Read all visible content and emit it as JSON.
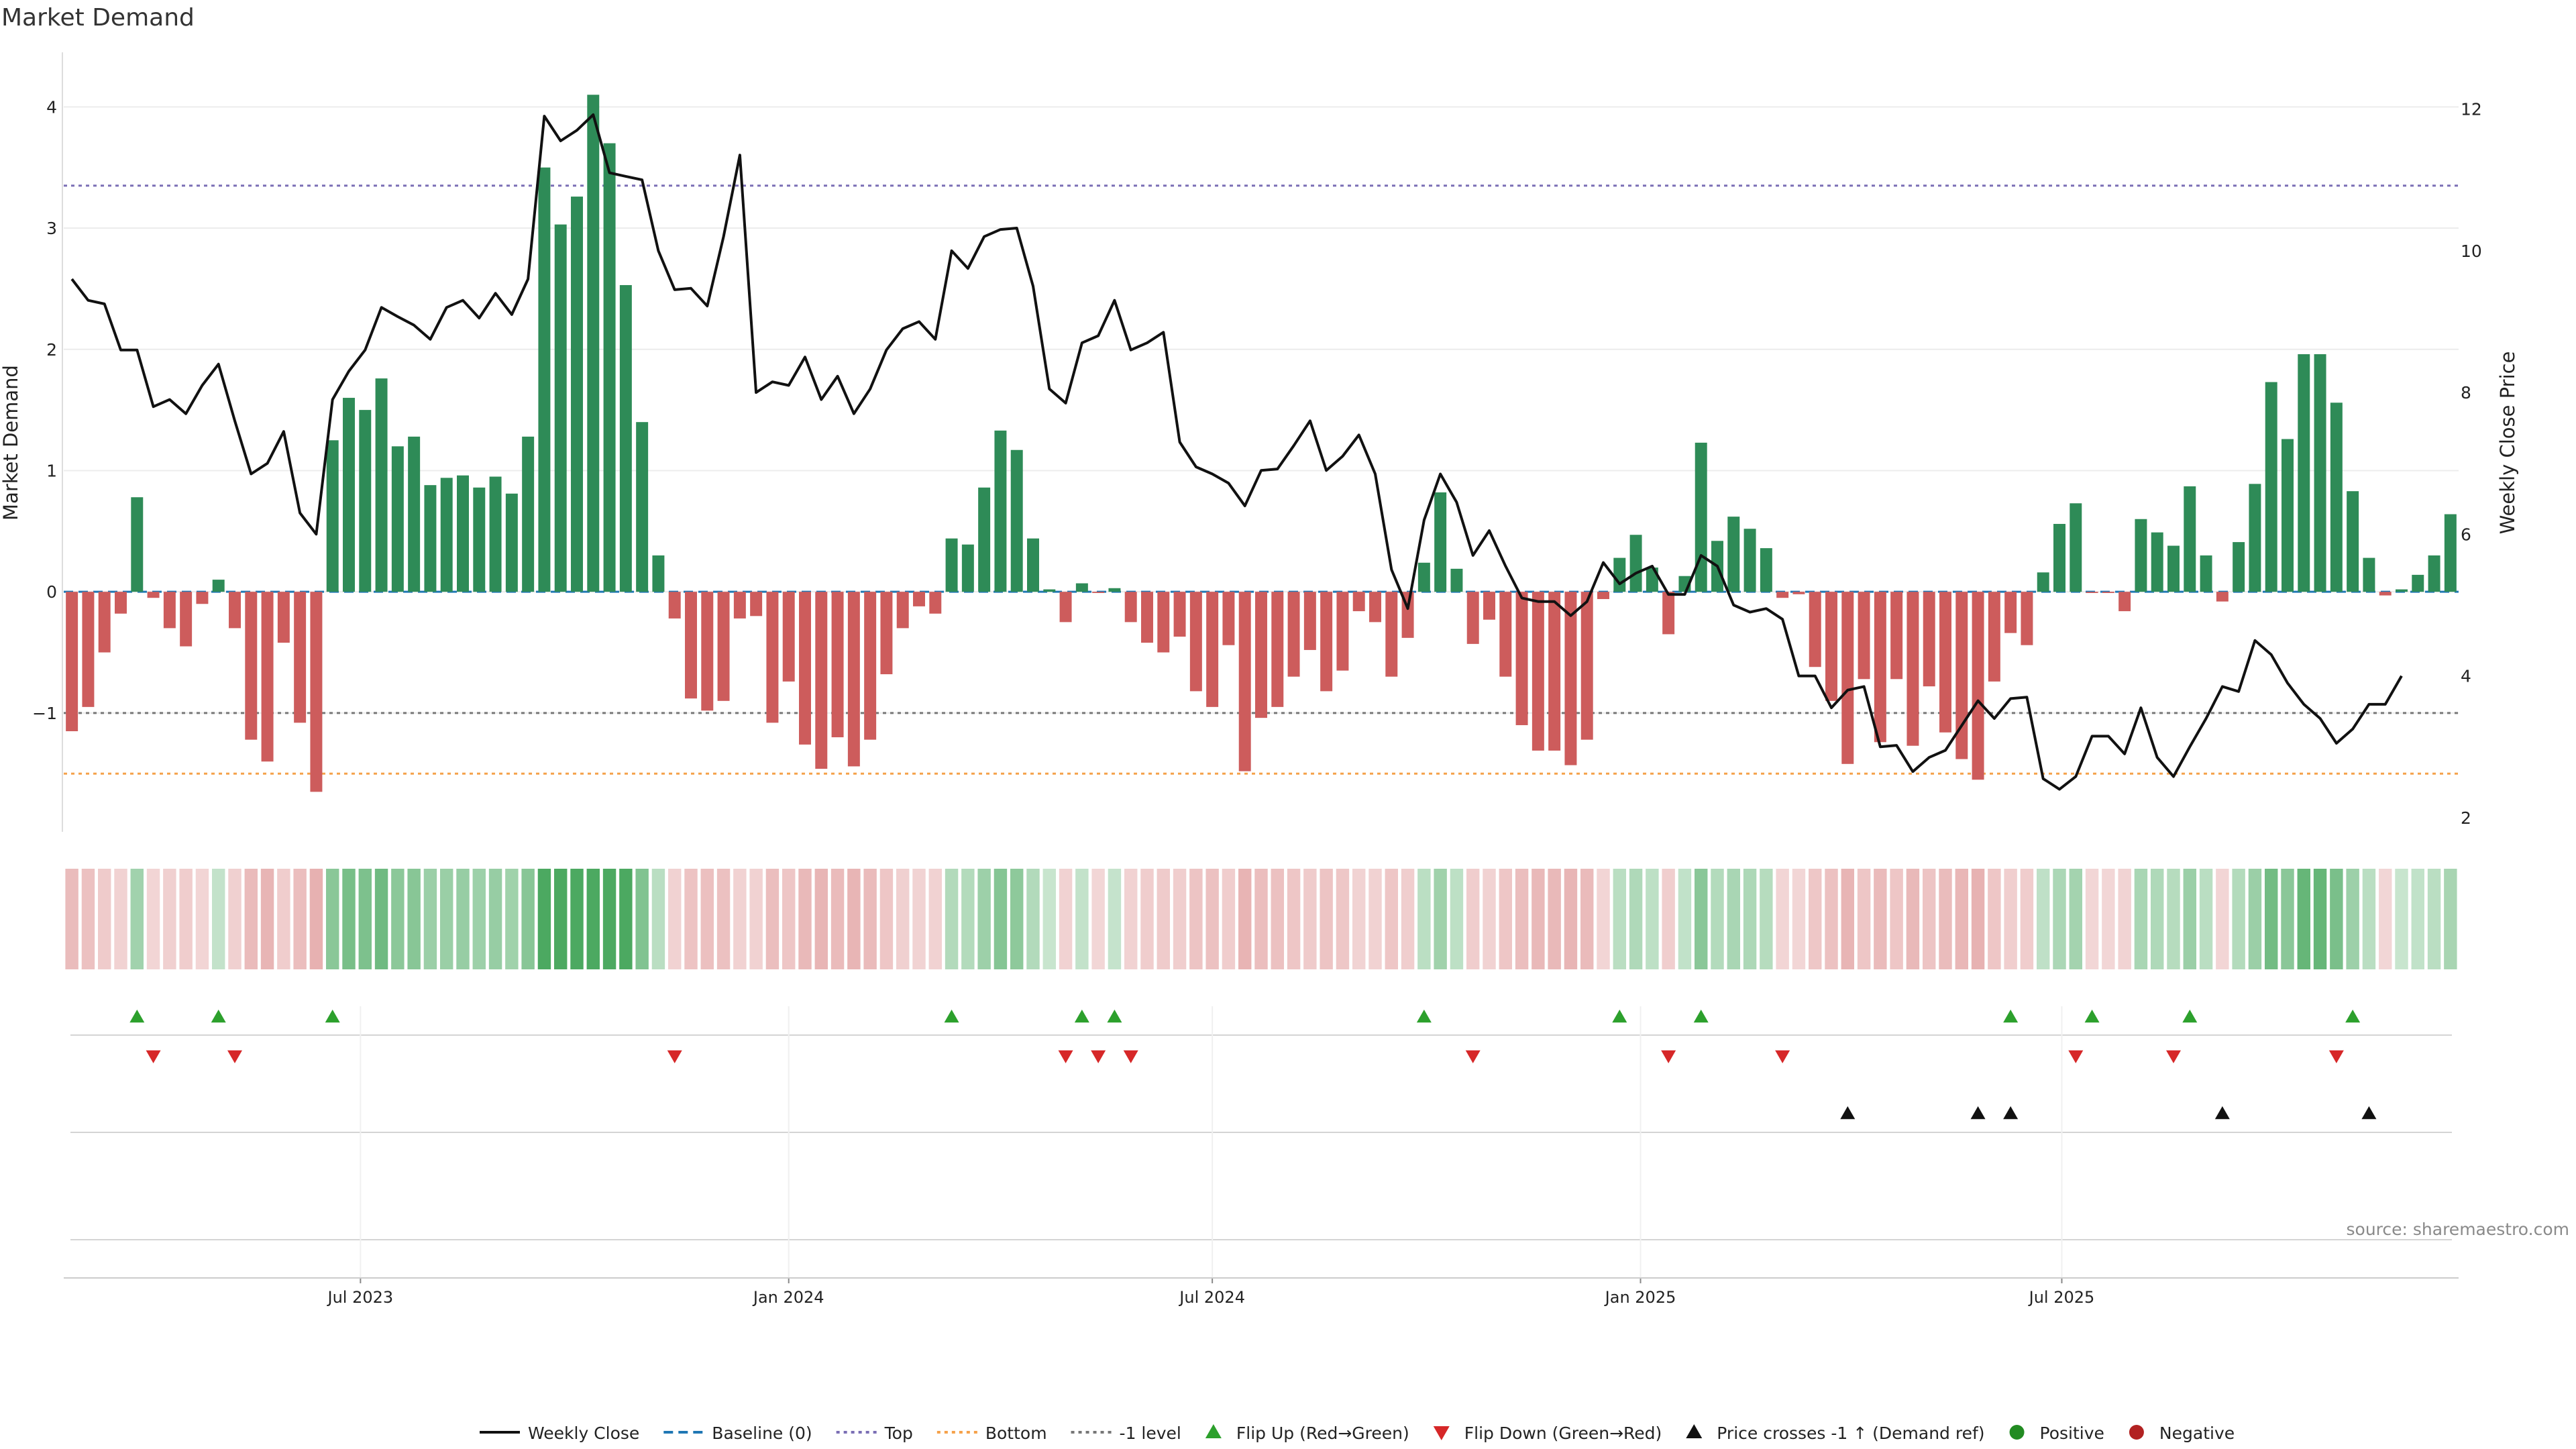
{
  "title": "Market Demand",
  "source": "source: sharemaestro.com",
  "chart_data": {
    "type": "bar",
    "title": "Market Demand",
    "ylabel": "Market Demand",
    "y2label": "Weekly Close Price",
    "ylim": [
      -1.98,
      4.45
    ],
    "y2lim": [
      1.8,
      12.8
    ],
    "yticks": [
      -1,
      0,
      1,
      2,
      3,
      4
    ],
    "y2ticks": [
      2,
      4,
      6,
      8,
      10,
      12
    ],
    "grid": true,
    "legend_position": "bottom",
    "x_start": "2023-02-27",
    "x_interval_days": 7,
    "date_ticks": [
      {
        "date": "2023-07-01",
        "label": "Jul 2023"
      },
      {
        "date": "2024-01-01",
        "label": "Jan 2024"
      },
      {
        "date": "2024-07-01",
        "label": "Jul 2024"
      },
      {
        "date": "2025-01-01",
        "label": "Jan 2025"
      },
      {
        "date": "2025-07-01",
        "label": "Jul 2025"
      }
    ],
    "reference_lines": [
      {
        "name": "Baseline (0)",
        "value": 0,
        "color": "#1f77b4",
        "style": "dashed"
      },
      {
        "name": "Top",
        "value": 3.35,
        "color": "#7b6fb5",
        "style": "dotted"
      },
      {
        "name": "Bottom",
        "value": -1.5,
        "color": "#f5a24b",
        "style": "dotted"
      },
      {
        "name": "-1 level",
        "value": -1,
        "color": "#777777",
        "style": "dotted"
      }
    ],
    "series": [
      {
        "name": "Market Demand",
        "kind": "bar",
        "values": [
          -1.15,
          -0.95,
          -0.5,
          -0.18,
          0.78,
          -0.05,
          -0.3,
          -0.45,
          -0.1,
          0.1,
          -0.3,
          -1.22,
          -1.4,
          -0.42,
          -1.08,
          -1.65,
          1.25,
          1.6,
          1.5,
          1.76,
          1.2,
          1.28,
          0.88,
          0.94,
          0.96,
          0.86,
          0.95,
          0.81,
          1.28,
          3.5,
          3.03,
          3.26,
          4.1,
          3.7,
          2.53,
          1.4,
          0.3,
          -0.22,
          -0.88,
          -0.98,
          -0.9,
          -0.22,
          -0.2,
          -1.08,
          -0.74,
          -1.26,
          -1.46,
          -1.2,
          -1.44,
          -1.22,
          -0.68,
          -0.3,
          -0.12,
          -0.18,
          0.44,
          0.39,
          0.86,
          1.33,
          1.17,
          0.44,
          0.02,
          -0.25,
          0.07,
          -0.01,
          0.03,
          -0.25,
          -0.42,
          -0.5,
          -0.37,
          -0.82,
          -0.95,
          -0.44,
          -1.48,
          -1.04,
          -0.95,
          -0.7,
          -0.48,
          -0.82,
          -0.65,
          -0.16,
          -0.25,
          -0.7,
          -0.38,
          0.24,
          0.82,
          0.19,
          -0.43,
          -0.23,
          -0.7,
          -1.1,
          -1.31,
          -1.31,
          -1.43,
          -1.22,
          -0.06,
          0.28,
          0.47,
          0.2,
          -0.35,
          0.13,
          1.23,
          0.42,
          0.62,
          0.52,
          0.36,
          -0.05,
          -0.02,
          -0.62,
          -0.9,
          -1.42,
          -0.72,
          -1.24,
          -0.72,
          -1.27,
          -0.78,
          -1.16,
          -1.38,
          -1.55,
          -0.74,
          -0.34,
          -0.44,
          0.16,
          0.56,
          0.73,
          -0.01,
          -0.01,
          -0.16,
          0.6,
          0.49,
          0.38,
          0.87,
          0.3,
          -0.08,
          0.41,
          0.89,
          1.73,
          1.26,
          1.96,
          1.96,
          1.56,
          0.83,
          0.28,
          -0.03,
          0.02,
          0.14,
          0.3,
          0.64
        ]
      },
      {
        "name": "Weekly Close",
        "kind": "line",
        "axis": "right",
        "values": [
          9.6,
          9.3,
          9.25,
          8.6,
          8.6,
          7.8,
          7.9,
          7.7,
          8.1,
          8.4,
          7.6,
          6.85,
          7.0,
          7.45,
          6.3,
          6.0,
          7.9,
          8.3,
          8.6,
          9.2,
          9.07,
          8.95,
          8.75,
          9.2,
          9.3,
          9.05,
          9.4,
          9.1,
          9.6,
          11.9,
          11.55,
          11.7,
          11.92,
          11.1,
          11.05,
          11.0,
          10.0,
          9.45,
          9.47,
          9.22,
          10.2,
          11.35,
          8.0,
          8.15,
          8.1,
          8.5,
          7.9,
          8.23,
          7.7,
          8.05,
          8.6,
          8.9,
          9.0,
          8.75,
          10.0,
          9.75,
          10.2,
          10.3,
          10.32,
          9.5,
          8.05,
          7.85,
          8.7,
          8.8,
          9.3,
          8.6,
          8.7,
          8.85,
          7.3,
          6.95,
          6.85,
          6.72,
          6.4,
          6.9,
          6.92,
          7.25,
          7.6,
          6.9,
          7.1,
          7.4,
          6.85,
          5.5,
          4.95,
          6.2,
          6.85,
          6.45,
          5.7,
          6.05,
          5.55,
          5.1,
          5.05,
          5.05,
          4.85,
          5.05,
          5.6,
          5.3,
          5.45,
          5.55,
          5.15,
          5.15,
          5.7,
          5.55,
          5.0,
          4.9,
          4.95,
          4.8,
          4.0,
          4.0,
          3.55,
          3.8,
          3.85,
          3.0,
          3.02,
          2.65,
          2.85,
          2.95,
          3.3,
          3.65,
          3.4,
          3.68,
          3.7,
          2.55,
          2.4,
          2.58,
          3.15,
          3.15,
          2.9,
          3.55,
          2.85,
          2.58,
          3.0,
          3.4,
          3.85,
          3.78,
          4.5,
          4.3,
          3.9,
          3.6,
          3.4,
          3.05,
          3.25,
          3.6,
          3.6,
          4.0
        ]
      }
    ],
    "flip_up_weeks": [
      4,
      9,
      16,
      54,
      62,
      64,
      83,
      95,
      100,
      119,
      124,
      130,
      140
    ],
    "flip_down_weeks": [
      5,
      10,
      37,
      61,
      63,
      65,
      86,
      98,
      105,
      123,
      129,
      139
    ],
    "price_cross_weeks": [
      109,
      117,
      119,
      132,
      141
    ]
  },
  "legend": [
    {
      "label": "Weekly Close",
      "marker": "line",
      "color": "#111111"
    },
    {
      "label": "Baseline (0)",
      "marker": "dashed",
      "color": "#1f77b4"
    },
    {
      "label": "Top",
      "marker": "dotted",
      "color": "#7b6fb5"
    },
    {
      "label": "Bottom",
      "marker": "dotted",
      "color": "#f5a24b"
    },
    {
      "label": "-1 level",
      "marker": "dotted",
      "color": "#777777"
    },
    {
      "label": "Flip Up (Red→Green)",
      "marker": "triangle-up",
      "color": "#2ca02c"
    },
    {
      "label": "Flip Down (Green→Red)",
      "marker": "triangle-down",
      "color": "#d62728"
    },
    {
      "label": "Price crosses -1 ↑ (Demand ref)",
      "marker": "triangle-up",
      "color": "#111111"
    },
    {
      "label": "Positive",
      "marker": "circle",
      "color": "#228B22"
    },
    {
      "label": "Negative",
      "marker": "circle",
      "color": "#B22222"
    }
  ],
  "colors": {
    "positive_bar": "#2e8b57",
    "negative_bar": "#cd5c5c",
    "price_line": "#111111",
    "flip_up": "#2ca02c",
    "flip_down": "#d62728",
    "cross": "#111111"
  }
}
